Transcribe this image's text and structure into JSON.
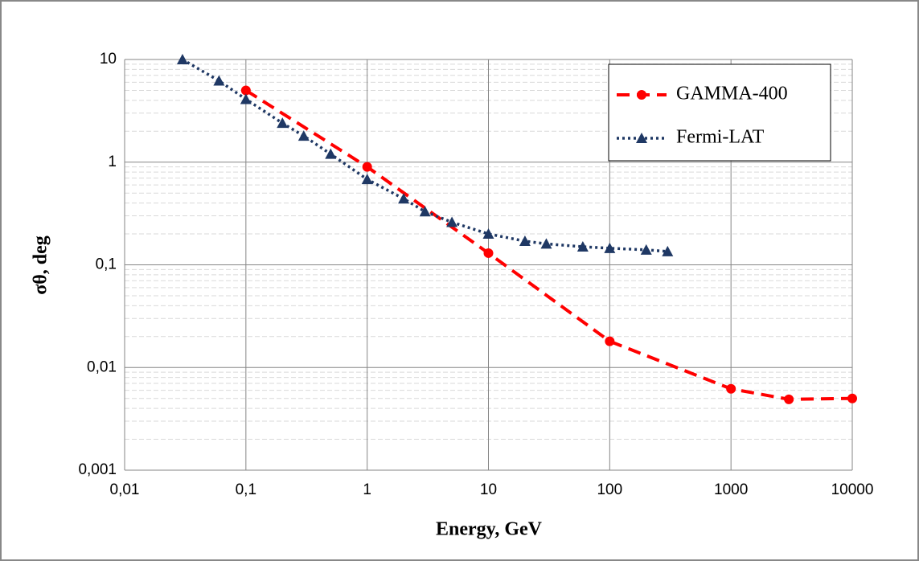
{
  "chart_data": {
    "type": "line",
    "x_label": "Energy, GeV",
    "y_label": "σθ, deg",
    "log_x": true,
    "log_y": true,
    "grid": true,
    "minor_grid": true,
    "legend": "upper right",
    "xlim": [
      0.01,
      10000
    ],
    "xticks": [
      {
        "value": 0.01,
        "label": "0,01"
      },
      {
        "value": 0.1,
        "label": "0,1"
      },
      1,
      10,
      100,
      1000,
      10000
    ],
    "ylim": [
      0.001,
      10
    ],
    "yticks": [
      {
        "value": 0.001,
        "label": "0,001"
      },
      {
        "value": 0.01,
        "label": "0,01"
      },
      {
        "value": 0.1,
        "label": "0,1"
      },
      1,
      10
    ],
    "series": [
      {
        "name": "GAMMA-400",
        "color": "#ff0000",
        "style": "dashed",
        "marker": "circle",
        "x": [
          0.1,
          1,
          10,
          100,
          1000,
          3000,
          10000
        ],
        "values": [
          5,
          0.9,
          0.13,
          0.018,
          0.0062,
          0.0049,
          0.005
        ]
      },
      {
        "name": "Fermi-LAT",
        "color": "#1f3864",
        "style": "dotted",
        "marker": "triangle",
        "x": [
          0.03,
          0.06,
          0.1,
          0.2,
          0.3,
          0.5,
          1,
          2,
          3,
          5,
          10,
          20,
          30,
          60,
          100,
          200,
          300
        ],
        "values": [
          10,
          6.2,
          4.1,
          2.4,
          1.8,
          1.2,
          0.68,
          0.44,
          0.33,
          0.26,
          0.2,
          0.17,
          0.16,
          0.15,
          0.145,
          0.14,
          0.135
        ]
      }
    ]
  }
}
